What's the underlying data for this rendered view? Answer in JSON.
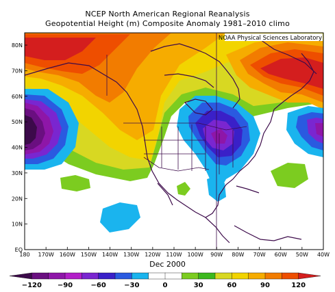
{
  "title_line1": "NCEP North American Regional Reanalysis",
  "title_line2": "Geopotential Height (m) Composite Anomaly 1981–2010 climo",
  "credit": "NOAA Physical Sciences Laboratory",
  "period": "Dec 2000",
  "lat_labels": [
    "80N",
    "70N",
    "60N",
    "50N",
    "40N",
    "30N",
    "20N",
    "10N",
    "EQ"
  ],
  "lon_labels": [
    "180",
    "170W",
    "160W",
    "150W",
    "140W",
    "130W",
    "120W",
    "110W",
    "100W",
    "90W",
    "80W",
    "70W",
    "60W",
    "50W",
    "40W"
  ],
  "colorbar": {
    "labels": [
      "-120",
      "-90",
      "-60",
      "-30",
      "0",
      "30",
      "60",
      "90",
      "120"
    ],
    "colors": [
      "#3c0a4a",
      "#6a0f80",
      "#8e16a8",
      "#b21ec8",
      "#7a26d0",
      "#3a20c8",
      "#2a5ae0",
      "#1ab4ee",
      "#ffffff",
      "#ffffff",
      "#7ccc20",
      "#3cb81e",
      "#d8d822",
      "#f2d400",
      "#f6ac00",
      "#f27c00",
      "#ee4e00",
      "#d41e1e"
    ]
  }
}
